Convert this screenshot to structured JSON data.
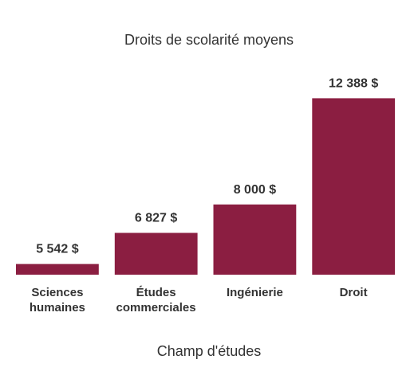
{
  "chart_data": {
    "type": "bar",
    "title": "Droits de scolarité moyens",
    "xlabel": "Champ d'études",
    "ylabel": "",
    "categories": [
      [
        "Sciences",
        "humaines"
      ],
      [
        "Études",
        "commerciales"
      ],
      [
        "Ingénierie"
      ],
      [
        "Droit"
      ]
    ],
    "values": [
      5542,
      6827,
      8000,
      12388
    ],
    "value_labels": [
      "5 542 $",
      "6 827 $",
      "8 000 $",
      "12 388 $"
    ],
    "ylim": [
      5100,
      12500
    ],
    "grid": false,
    "legend": "none",
    "bar_color": "#8b1e41"
  }
}
